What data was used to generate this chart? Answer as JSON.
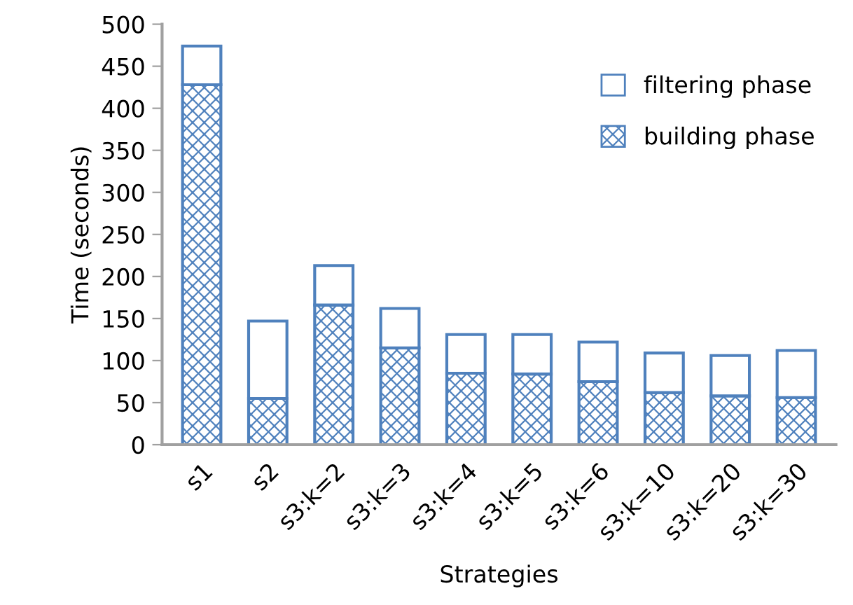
{
  "chart_data": {
    "type": "bar",
    "stacked": true,
    "xlabel": "Strategies",
    "ylabel": "Time (seconds)",
    "categories": [
      "s1",
      "s2",
      "s3:k=2",
      "s3:k=3",
      "s3:k=4",
      "s3:k=5",
      "s3:k=6",
      "s3:k=10",
      "s3:k=20",
      "s3:k=30"
    ],
    "series": [
      {
        "name": "building phase",
        "color": "#4f81bd",
        "values": [
          428,
          55,
          166,
          115,
          85,
          84,
          75,
          62,
          58,
          56
        ]
      },
      {
        "name": "filtering phase",
        "color": "#4f81bd",
        "values": [
          46,
          92,
          47,
          47,
          46,
          47,
          47,
          47,
          48,
          56
        ]
      }
    ],
    "ylim": [
      0,
      500
    ],
    "yticks": [
      0,
      50,
      100,
      150,
      200,
      250,
      300,
      350,
      400,
      450,
      500
    ],
    "grid": false,
    "legend": "top right"
  }
}
